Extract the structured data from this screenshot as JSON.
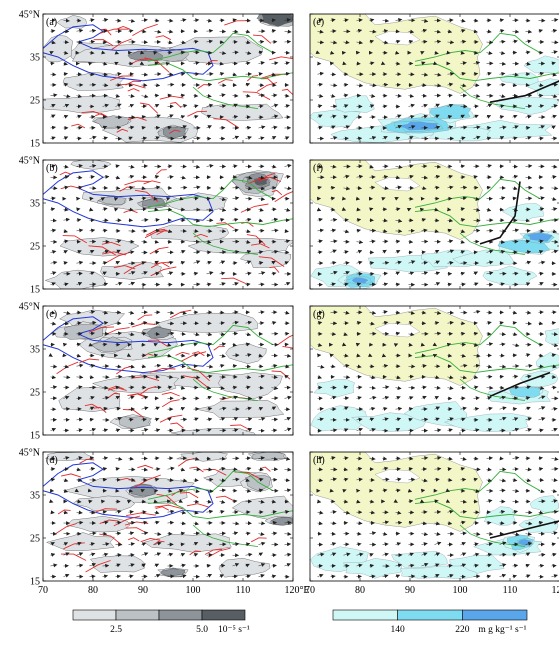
{
  "figure": {
    "longitude_ticks": [
      "70",
      "80",
      "90",
      "100",
      "110",
      "120°E"
    ],
    "latitude_ticks": [
      "45°N",
      "35",
      "25",
      "15"
    ],
    "panels": [
      {
        "label": "(a)",
        "field": "vorticity"
      },
      {
        "label": "(b)",
        "field": "vorticity"
      },
      {
        "label": "(c)",
        "field": "vorticity"
      },
      {
        "label": "(d)",
        "field": "vorticity"
      },
      {
        "label": "(e)",
        "field": "moisture_flux"
      },
      {
        "label": "(f)",
        "field": "moisture_flux"
      },
      {
        "label": "(g)",
        "field": "moisture_flux"
      },
      {
        "label": "(h)",
        "field": "moisture_flux"
      }
    ],
    "colorbars": {
      "vorticity": {
        "labels": [
          "2.5",
          "5.0"
        ],
        "unit": "10⁻⁵ s⁻¹",
        "colors": [
          "#dfe2e5",
          "#bcc1c6",
          "#8d949a",
          "#585f64"
        ]
      },
      "moisture_flux": {
        "labels": [
          "140",
          "220"
        ],
        "unit": "m g kg⁻¹ s⁻¹",
        "colors": [
          "#cff7f5",
          "#7fdcf0",
          "#5aa6ea"
        ]
      }
    },
    "colors": {
      "plateau": "#f3f6c6",
      "trough_line": "#111111",
      "wind_vector": "#222222",
      "red_streamline": "#e22d2d",
      "blue_contour": "#2338d6",
      "green_river": "#35b03a"
    }
  }
}
